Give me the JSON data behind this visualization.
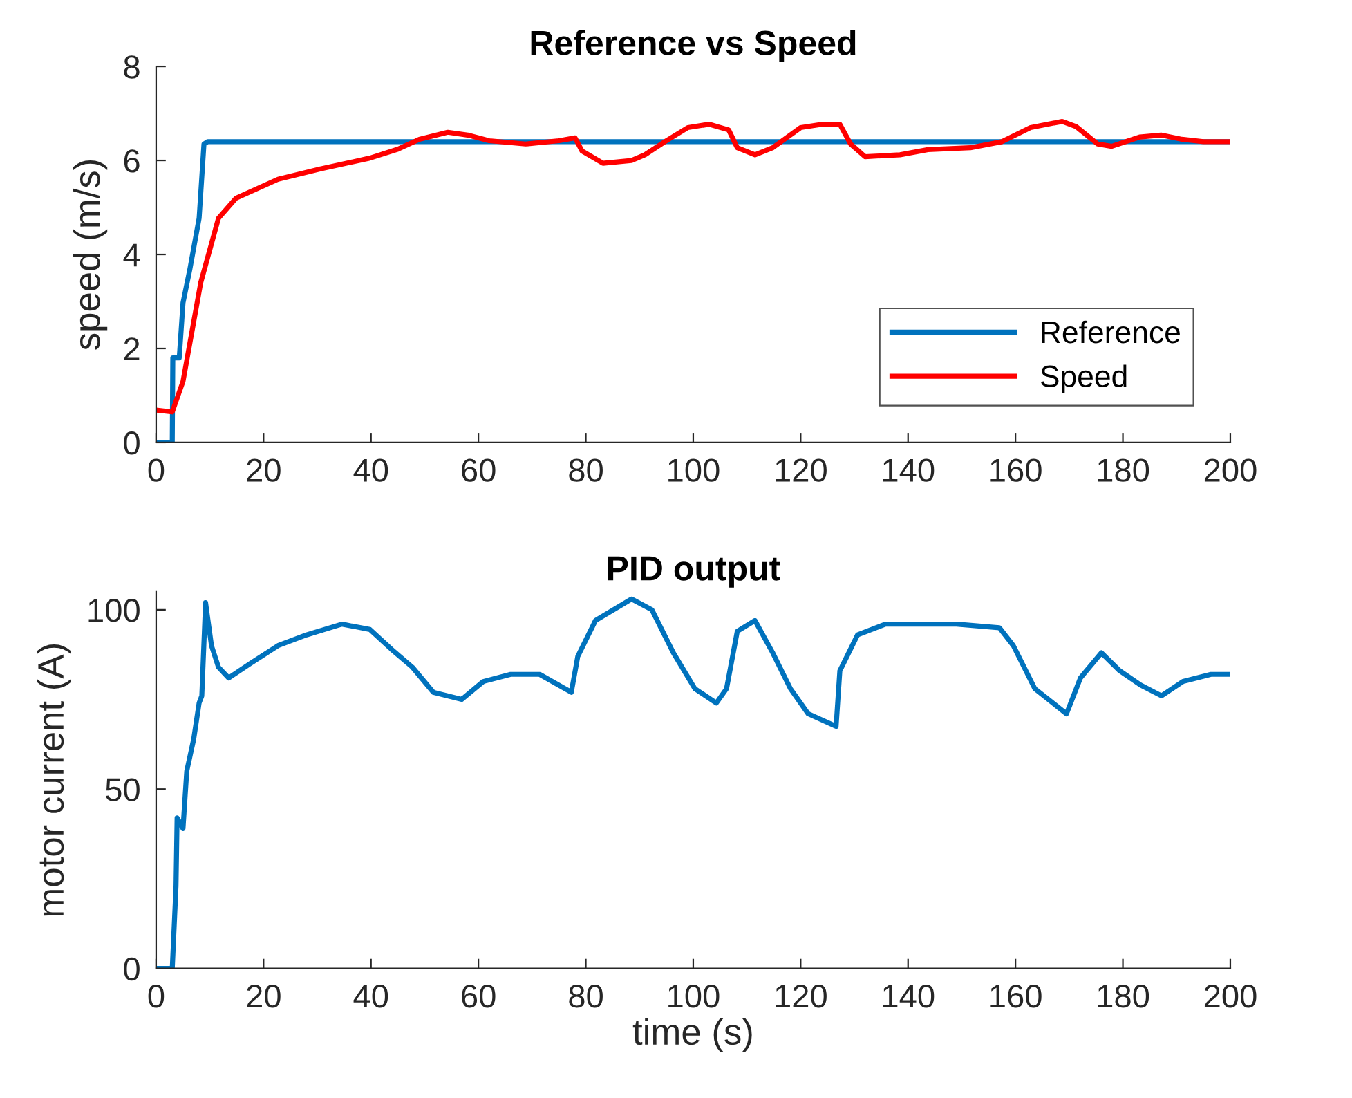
{
  "chart_data": [
    {
      "type": "line",
      "title": "Reference vs Speed",
      "ylabel": "speed (m/s)",
      "xlim": [
        0,
        200
      ],
      "xticks": [
        0,
        20,
        40,
        60,
        80,
        100,
        120,
        140,
        160,
        180,
        200
      ],
      "ylim": [
        0,
        8
      ],
      "yticks": [
        0,
        2,
        4,
        6,
        8
      ],
      "grid": false,
      "legend": "bottom right",
      "series": [
        {
          "name": "Reference",
          "color": "#0072bd",
          "x": [
            0,
            3,
            3.1,
            4.3,
            5,
            6.3,
            8,
            8.9,
            9.6,
            200
          ],
          "values": [
            0,
            0,
            1.8,
            1.8,
            2.97,
            3.7,
            4.77,
            6.35,
            6.4,
            6.4
          ]
        },
        {
          "name": "Speed",
          "color": "#ff0000",
          "x": [
            0,
            3,
            5,
            8.3,
            11.6,
            14.9,
            22.7,
            30.6,
            39.8,
            45,
            49,
            54.3,
            58,
            62,
            68.8,
            75,
            78,
            79.3,
            83.2,
            88.5,
            91,
            95,
            99,
            103,
            106.6,
            108.2,
            111.5,
            114.8,
            120,
            124,
            127.3,
            129.3,
            132,
            138.5,
            143.7,
            151.6,
            157.5,
            162.8,
            168.7,
            171.3,
            175.3,
            177.9,
            183.2,
            187.1,
            191,
            195,
            200
          ],
          "values": [
            0.69,
            0.65,
            1.3,
            3.4,
            4.77,
            5.2,
            5.6,
            5.82,
            6.05,
            6.24,
            6.45,
            6.6,
            6.54,
            6.42,
            6.35,
            6.42,
            6.48,
            6.2,
            5.94,
            6.0,
            6.12,
            6.42,
            6.7,
            6.77,
            6.65,
            6.27,
            6.12,
            6.27,
            6.7,
            6.77,
            6.77,
            6.35,
            6.08,
            6.12,
            6.23,
            6.27,
            6.4,
            6.7,
            6.83,
            6.72,
            6.35,
            6.3,
            6.5,
            6.54,
            6.45,
            6.4,
            6.4
          ]
        }
      ]
    },
    {
      "type": "line",
      "title": "PID output",
      "xlabel": "time (s)",
      "ylabel": "motor current (A)",
      "xlim": [
        0,
        200
      ],
      "xticks": [
        0,
        20,
        40,
        60,
        80,
        100,
        120,
        140,
        160,
        180,
        200
      ],
      "ylim": [
        0,
        105
      ],
      "yticks": [
        0,
        50,
        100
      ],
      "grid": false,
      "legend": false,
      "series": [
        {
          "color": "#0072bd",
          "x": [
            0,
            3,
            3.7,
            3.9,
            5,
            5.7,
            7,
            8,
            8.5,
            9.2,
            10.3,
            11.6,
            13.5,
            17.5,
            22.7,
            28,
            34.6,
            39.8,
            43.8,
            47.7,
            51.6,
            56.9,
            60.9,
            66,
            71.4,
            77.3,
            78.5,
            81.8,
            88.5,
            92.3,
            96.3,
            100.3,
            104.3,
            106.2,
            108.2,
            111.5,
            114.8,
            118.1,
            121.4,
            126.6,
            127.3,
            130.6,
            135.8,
            141,
            149,
            157,
            159.6,
            163.6,
            169.5,
            172.1,
            176,
            179.4,
            183.3,
            187.2,
            191.2,
            196.4,
            200
          ],
          "values": [
            0,
            0,
            23,
            42,
            39,
            55,
            64,
            74,
            76,
            102,
            90,
            84,
            81,
            85,
            90,
            93,
            96,
            94.5,
            89,
            84,
            77,
            75,
            80,
            82,
            82,
            77,
            87,
            97,
            103,
            100,
            88,
            78,
            74,
            78,
            94,
            97,
            88,
            78,
            71,
            67.5,
            83,
            93,
            96,
            96,
            96,
            95,
            90,
            78,
            71,
            81,
            88,
            83,
            79,
            76,
            80,
            82,
            82
          ]
        }
      ]
    }
  ]
}
